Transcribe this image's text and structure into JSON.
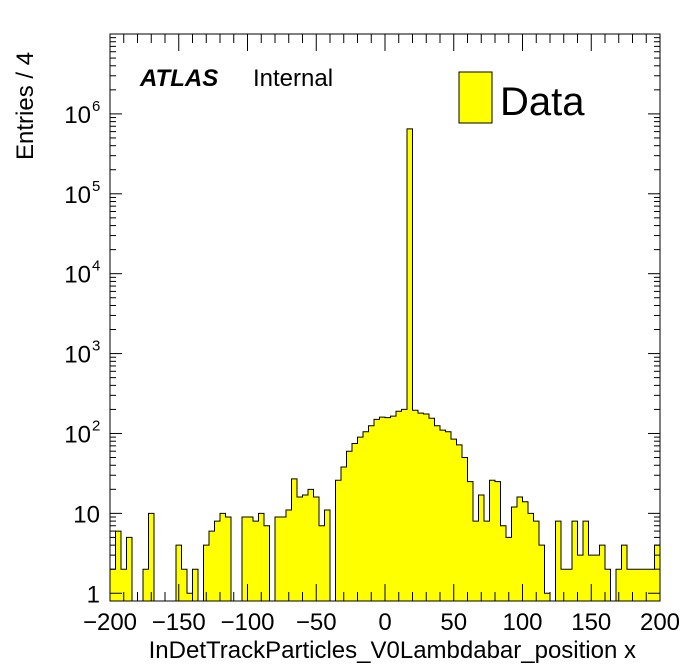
{
  "chart_data": {
    "type": "bar",
    "title": "",
    "xlabel": "InDetTrackParticles_V0Lambdabar_position x",
    "ylabel": "Entries / 4",
    "xlim": [
      -200,
      200
    ],
    "ylim": [
      0.8,
      10000000
    ],
    "log_y": true,
    "bin_width": 4,
    "x_ticks": [
      -200,
      -150,
      -100,
      -50,
      0,
      50,
      100,
      150,
      200
    ],
    "x_tick_labels": [
      "−200",
      "−150",
      "−100",
      "−50",
      "0",
      "50",
      "100",
      "150",
      "200"
    ],
    "y_tick_labels": [
      {
        "value": 1,
        "base": "1",
        "exp": ""
      },
      {
        "value": 10,
        "base": "10",
        "exp": ""
      },
      {
        "value": 100,
        "base": "10",
        "exp": "2"
      },
      {
        "value": 1000,
        "base": "10",
        "exp": "3"
      },
      {
        "value": 10000,
        "base": "10",
        "exp": "4"
      },
      {
        "value": 100000,
        "base": "10",
        "exp": "5"
      },
      {
        "value": 1000000,
        "base": "10",
        "exp": "6"
      }
    ],
    "annotation": {
      "bold": "ATLAS",
      "normal": "Internal"
    },
    "legend": {
      "position": "top-right",
      "entries": [
        "Data"
      ]
    },
    "series": [
      {
        "name": "Data",
        "color": "#ffff00",
        "bin_edges_start": -200,
        "values": [
          2,
          6,
          2,
          5,
          0,
          0,
          2,
          10,
          0,
          0,
          0,
          0,
          4,
          2,
          1,
          2,
          0,
          4,
          6,
          8,
          10,
          9,
          0,
          0,
          9,
          9,
          8,
          10,
          7,
          0,
          9,
          9,
          11,
          27,
          16,
          17,
          20,
          16,
          7,
          11,
          0,
          26,
          38,
          60,
          75,
          90,
          105,
          125,
          150,
          160,
          158,
          165,
          190,
          200,
          650000,
          195,
          180,
          175,
          155,
          125,
          110,
          105,
          85,
          72,
          50,
          25,
          8,
          17,
          8,
          26,
          25,
          7,
          5,
          12,
          16,
          14,
          10,
          8,
          4,
          1,
          0,
          8,
          2,
          2,
          8,
          3,
          8,
          3,
          3,
          4,
          2,
          0,
          2,
          4,
          2,
          2,
          2,
          2,
          2,
          4
        ]
      }
    ]
  }
}
